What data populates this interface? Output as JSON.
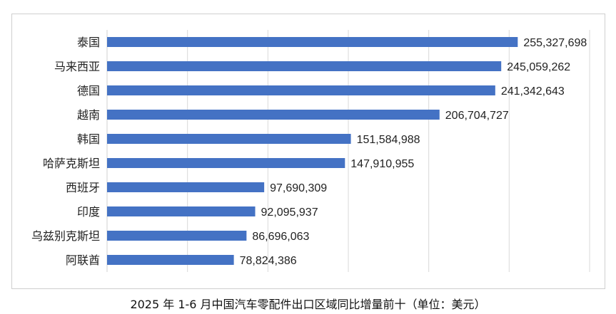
{
  "chart_data": {
    "type": "bar",
    "orientation": "horizontal",
    "title": "2025 年 1-6 月中国汽车零配件出口区域同比增量前十（单位：美元）",
    "categories": [
      "泰国",
      "马来西亚",
      "德国",
      "越南",
      "韩国",
      "哈萨克斯坦",
      "西班牙",
      "印度",
      "乌兹别克斯坦",
      "阿联酋"
    ],
    "values": [
      255327698,
      245059262,
      241342643,
      206704727,
      151584988,
      147910955,
      97690309,
      92095937,
      86696063,
      78824386
    ],
    "value_labels": [
      "255,327,698",
      "245,059,262",
      "241,342,643",
      "206,704,727",
      "151,584,988",
      "147,910,955",
      "97,690,309",
      "92,095,937",
      "86,696,063",
      "78,824,386"
    ],
    "xlim": [
      0,
      300000000
    ],
    "grid": true,
    "bar_color": "#4472c4",
    "grid_color": "#d9d9d9"
  }
}
